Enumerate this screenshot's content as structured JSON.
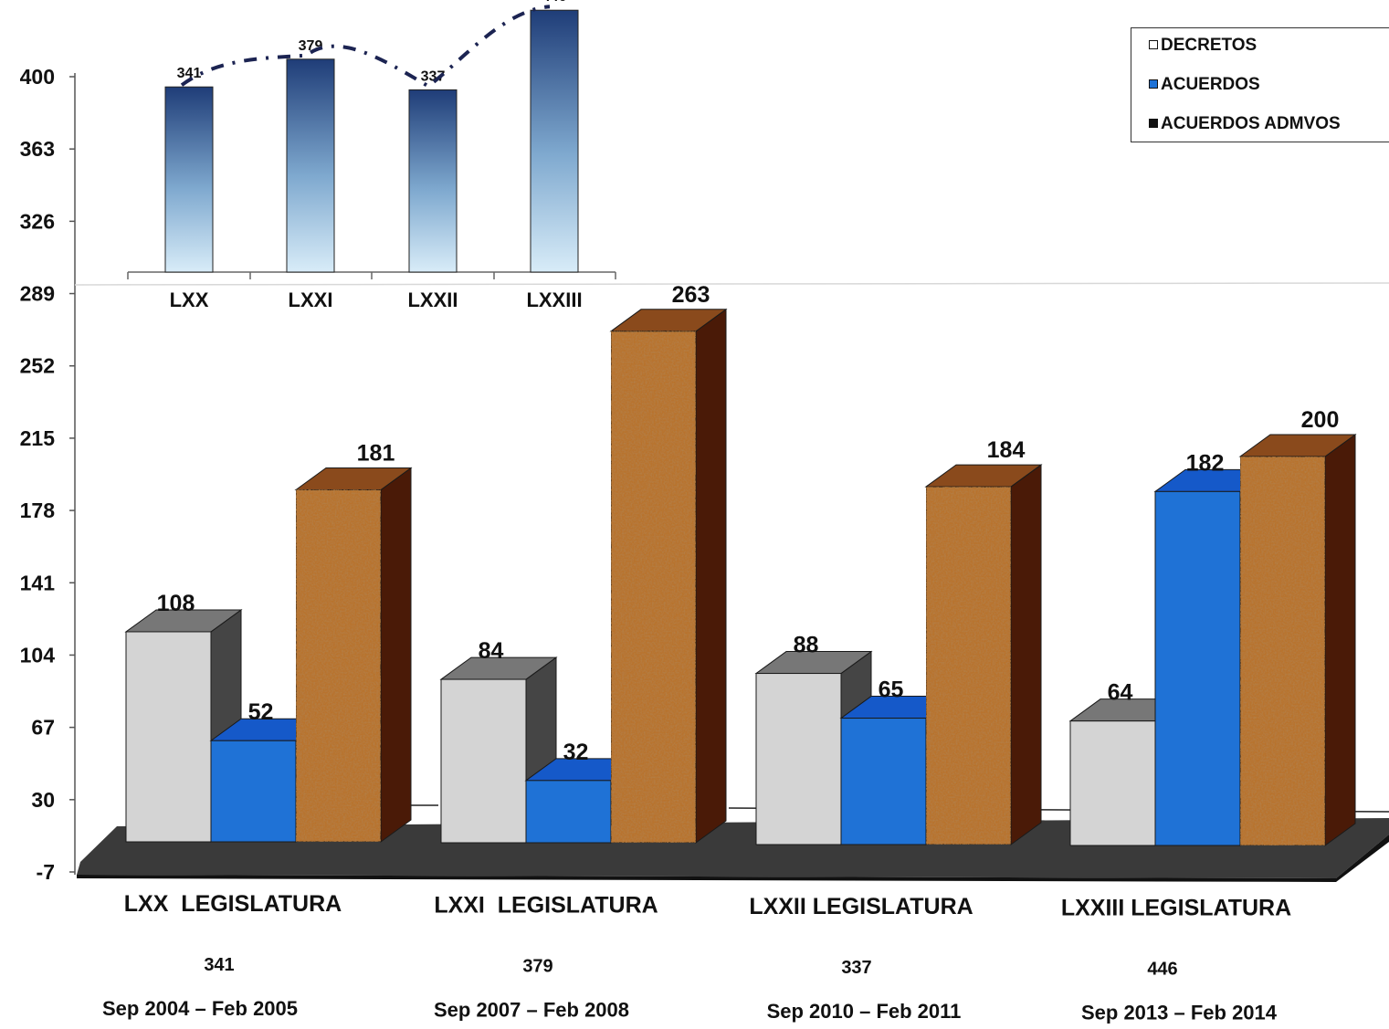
{
  "chart_data": [
    {
      "type": "bar",
      "title": "",
      "xlabel": "",
      "ylabel": "",
      "categories": [
        "LXX",
        "LXXI",
        "LXXII",
        "LXXIII"
      ],
      "values": [
        341,
        379,
        337,
        446
      ],
      "trendline": "dash-dot",
      "colors": {
        "bar_top": "#1f3d78",
        "bar_bottom": "#d8ecf8",
        "trend": "#1c2452"
      }
    },
    {
      "type": "bar",
      "title": "",
      "xlabel": "",
      "ylabel": "",
      "y_ticks": [
        "400",
        "363",
        "326",
        "289",
        "252",
        "215",
        "178",
        "141",
        "104",
        "67",
        "30",
        "-7"
      ],
      "ylim": [
        -7,
        400
      ],
      "categories": [
        "LXX  LEGISLATURA",
        "LXXI  LEGISLATURA",
        "LXXII LEGISLATURA",
        "LXXIII LEGISLATURA"
      ],
      "totals": [
        "341",
        "379",
        "337",
        "446"
      ],
      "periods": [
        "Sep 2004 – Feb 2005",
        "Sep 2007 – Feb 2008",
        "Sep 2010 – Feb 2011",
        "Sep 2013 – Feb 2014"
      ],
      "series": [
        {
          "name": "DECRETOS",
          "values": [
            108,
            84,
            88,
            64
          ],
          "color": "#d4d4d4"
        },
        {
          "name": "ACUERDOS",
          "values": [
            52,
            32,
            65,
            182
          ],
          "color": "#1f72d6"
        },
        {
          "name": "ACUERDOS ADMVOS",
          "values": [
            181,
            263,
            184,
            200
          ],
          "color": "#b8732e"
        }
      ],
      "legend_position": "top-right",
      "grid": false
    }
  ]
}
